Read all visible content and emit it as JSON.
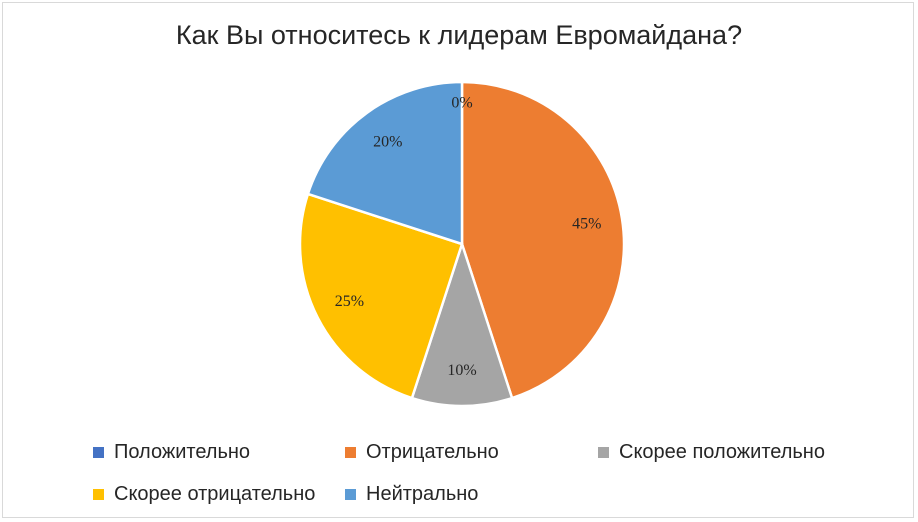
{
  "chart_data": {
    "type": "pie",
    "title": "Как Вы относитесь к лидерам Евромайдана?",
    "categories": [
      "Положительно",
      "Отрицательно",
      "Скорее положительно",
      "Скорее отрицательно",
      "Нейтрально"
    ],
    "values": [
      0,
      45,
      10,
      25,
      20
    ],
    "data_labels": [
      "0%",
      "45%",
      "10%",
      "25%",
      "20%"
    ],
    "colors": [
      "#4472c4",
      "#ed7d31",
      "#a5a5a5",
      "#ffc000",
      "#5b9bd5"
    ],
    "legend_position": "bottom"
  }
}
